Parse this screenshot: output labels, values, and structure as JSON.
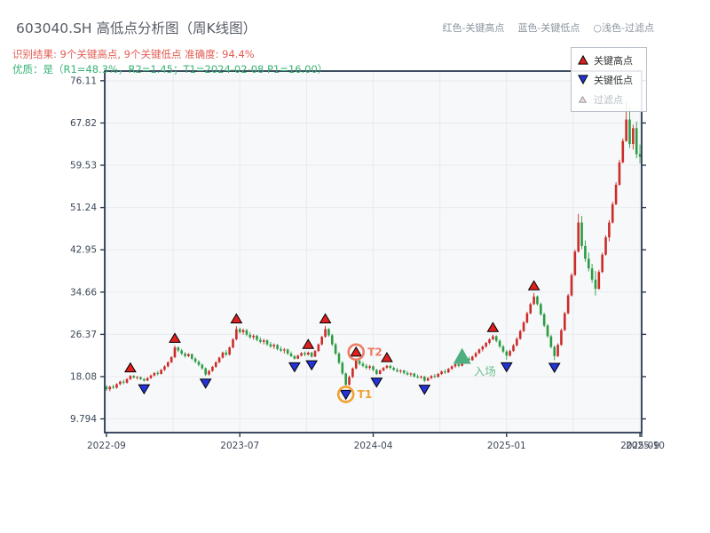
{
  "header": {
    "title": "603040.SH 高低点分析图（周K线图）",
    "result_line": "识别结果: 9个关键高点, 9个关键低点  准确度: 94.4%",
    "quality_line": "优质：是（R1=48.3%，R2=1.45；T1=2024-02-08 P1=16.00）",
    "note_items": [
      "红色-关键高点",
      "蓝色-关键低点",
      "○浅色-过滤点"
    ]
  },
  "legend": {
    "items": [
      {
        "label": "关键高点",
        "marker": "triangle-up",
        "color": "#e01f1f"
      },
      {
        "label": "关键低点",
        "marker": "triangle-down",
        "color": "#2433d8"
      },
      {
        "label": "过滤点",
        "marker": "triangle-up-small",
        "color": "#f6d4cf"
      }
    ]
  },
  "chart_data": {
    "type": "candlestick",
    "timeframe": "weekly",
    "title": "603040.SH 高低点分析图（周K线图）",
    "ylim": [
      7.1,
      78.0
    ],
    "grid": true,
    "y_ticks": [
      {
        "v": 76.11,
        "label": "76.11"
      },
      {
        "v": 67.82,
        "label": "67.82"
      },
      {
        "v": 59.53,
        "label": "59.53"
      },
      {
        "v": 51.24,
        "label": "51.24"
      },
      {
        "v": 42.95,
        "label": "42.95"
      },
      {
        "v": 34.66,
        "label": "34.66"
      },
      {
        "v": 26.37,
        "label": "26.37"
      },
      {
        "v": 18.08,
        "label": "18.08"
      },
      {
        "v": 9.794,
        "label": "9.794"
      }
    ],
    "x_ticks": [
      {
        "week": 0,
        "label": "2022-09"
      },
      {
        "week": 19.5
      },
      {
        "week": 39,
        "label": "2023-07"
      },
      {
        "week": 58.5
      },
      {
        "week": 78,
        "label": "2024-04"
      },
      {
        "week": 97.5
      },
      {
        "week": 117,
        "label": "2025-01"
      },
      {
        "week": 136.5
      },
      {
        "week": 156,
        "label": "2025-09"
      }
    ],
    "x_edge_label": "2025-10",
    "colors": {
      "up": "#cc2c28",
      "down": "#2b9c44",
      "plot_bg": "#f7f8fa",
      "grid": "#e7eaee",
      "spine": "#2a3950",
      "tick_label": "#3c4858",
      "marker_high": "#e01f1f",
      "marker_low": "#2433d8",
      "marker_edge": "#000000",
      "entry": "#4fae80",
      "entry_label": "#6fc08e",
      "t1": "#f0a12f",
      "t2": "#ec7d66"
    },
    "candles": [
      [
        16.1,
        16.4,
        15.3,
        15.6
      ],
      [
        15.6,
        16.3,
        15.2,
        16.1
      ],
      [
        16.1,
        16.5,
        15.7,
        15.9
      ],
      [
        15.9,
        16.8,
        15.7,
        16.6
      ],
      [
        16.6,
        17.3,
        16.4,
        17.1
      ],
      [
        17.1,
        17.5,
        16.6,
        16.9
      ],
      [
        16.9,
        17.8,
        16.7,
        17.6
      ],
      [
        17.6,
        18.4,
        17.4,
        18.2
      ],
      [
        18.2,
        18.4,
        17.7,
        17.9
      ],
      [
        17.9,
        18.2,
        17.5,
        18.0
      ],
      [
        18.0,
        18.1,
        17.4,
        17.6
      ],
      [
        17.6,
        17.8,
        17.1,
        17.3
      ],
      [
        17.3,
        18.0,
        17.2,
        17.8
      ],
      [
        17.8,
        18.5,
        17.6,
        18.3
      ],
      [
        18.3,
        19.0,
        18.1,
        18.8
      ],
      [
        18.8,
        19.2,
        18.3,
        18.6
      ],
      [
        18.6,
        19.6,
        18.5,
        19.4
      ],
      [
        19.4,
        20.3,
        19.2,
        20.1
      ],
      [
        20.1,
        21.1,
        19.9,
        20.9
      ],
      [
        20.9,
        22.1,
        20.7,
        21.9
      ],
      [
        21.9,
        24.2,
        21.7,
        23.8
      ],
      [
        23.8,
        24.0,
        22.9,
        23.2
      ],
      [
        23.2,
        23.5,
        22.3,
        22.6
      ],
      [
        22.6,
        22.9,
        21.8,
        22.1
      ],
      [
        22.1,
        22.7,
        21.9,
        22.5
      ],
      [
        22.5,
        22.6,
        21.3,
        21.6
      ],
      [
        21.6,
        21.9,
        20.7,
        21.0
      ],
      [
        21.0,
        21.3,
        20.1,
        20.4
      ],
      [
        20.4,
        20.7,
        19.4,
        19.7
      ],
      [
        19.7,
        19.9,
        18.2,
        18.5
      ],
      [
        18.5,
        19.4,
        18.3,
        19.2
      ],
      [
        19.2,
        20.2,
        19.0,
        20.0
      ],
      [
        20.0,
        21.1,
        19.8,
        20.9
      ],
      [
        20.9,
        22.0,
        20.7,
        21.8
      ],
      [
        21.8,
        23.0,
        21.6,
        22.8
      ],
      [
        22.8,
        23.3,
        22.1,
        22.4
      ],
      [
        22.4,
        24.0,
        22.2,
        23.8
      ],
      [
        23.8,
        25.6,
        23.6,
        25.4
      ],
      [
        25.4,
        28.0,
        25.2,
        27.4
      ],
      [
        27.4,
        27.7,
        26.5,
        26.8
      ],
      [
        26.8,
        27.5,
        26.3,
        27.2
      ],
      [
        27.2,
        27.4,
        26.0,
        26.3
      ],
      [
        26.3,
        26.8,
        25.5,
        25.8
      ],
      [
        25.8,
        26.4,
        25.3,
        26.1
      ],
      [
        26.1,
        26.3,
        25.0,
        25.3
      ],
      [
        25.3,
        25.8,
        24.6,
        24.9
      ],
      [
        24.9,
        25.5,
        24.4,
        25.2
      ],
      [
        25.2,
        25.4,
        24.1,
        24.4
      ],
      [
        24.4,
        24.9,
        23.7,
        24.0
      ],
      [
        24.0,
        24.6,
        23.5,
        24.3
      ],
      [
        24.3,
        24.5,
        23.2,
        23.5
      ],
      [
        23.5,
        24.0,
        22.9,
        23.2
      ],
      [
        23.2,
        23.7,
        22.6,
        23.4
      ],
      [
        23.4,
        23.6,
        22.3,
        22.6
      ],
      [
        22.6,
        23.0,
        21.9,
        22.1
      ],
      [
        22.1,
        22.3,
        21.4,
        21.6
      ],
      [
        21.6,
        22.4,
        21.5,
        22.2
      ],
      [
        22.2,
        22.9,
        22.0,
        22.7
      ],
      [
        22.7,
        23.0,
        22.1,
        22.4
      ],
      [
        22.4,
        23.0,
        22.2,
        22.8
      ],
      [
        22.8,
        22.9,
        21.8,
        22.0
      ],
      [
        22.0,
        23.3,
        21.9,
        23.1
      ],
      [
        23.1,
        24.6,
        22.9,
        24.4
      ],
      [
        24.4,
        26.1,
        24.2,
        25.9
      ],
      [
        25.9,
        28.0,
        25.7,
        27.4
      ],
      [
        27.4,
        27.6,
        25.9,
        26.2
      ],
      [
        26.2,
        26.5,
        24.1,
        24.4
      ],
      [
        24.4,
        24.7,
        22.3,
        22.6
      ],
      [
        22.6,
        22.9,
        20.5,
        20.8
      ],
      [
        20.8,
        21.1,
        18.4,
        18.7
      ],
      [
        18.7,
        18.9,
        16.0,
        16.5
      ],
      [
        16.5,
        18.3,
        16.3,
        18.0
      ],
      [
        18.0,
        19.9,
        17.8,
        19.7
      ],
      [
        19.7,
        21.5,
        19.5,
        21.2
      ],
      [
        21.2,
        21.4,
        20.3,
        20.6
      ],
      [
        20.6,
        21.0,
        19.9,
        20.2
      ],
      [
        20.2,
        20.6,
        19.5,
        19.8
      ],
      [
        19.8,
        20.4,
        19.4,
        20.1
      ],
      [
        20.1,
        20.3,
        19.1,
        19.4
      ],
      [
        19.4,
        19.6,
        18.4,
        18.6
      ],
      [
        18.6,
        19.5,
        18.5,
        19.3
      ],
      [
        19.3,
        20.0,
        19.1,
        19.8
      ],
      [
        19.8,
        20.4,
        19.6,
        20.2
      ],
      [
        20.2,
        20.4,
        19.5,
        19.8
      ],
      [
        19.8,
        20.1,
        19.2,
        19.4
      ],
      [
        19.4,
        19.8,
        18.9,
        19.1
      ],
      [
        19.1,
        19.5,
        18.7,
        19.3
      ],
      [
        19.3,
        19.4,
        18.5,
        18.8
      ],
      [
        18.8,
        19.2,
        18.3,
        18.5
      ],
      [
        18.5,
        18.9,
        18.1,
        18.7
      ],
      [
        18.7,
        18.8,
        17.9,
        18.1
      ],
      [
        18.1,
        18.5,
        17.7,
        17.9
      ],
      [
        17.9,
        18.3,
        17.6,
        18.1
      ],
      [
        18.1,
        18.2,
        17.0,
        17.3
      ],
      [
        17.3,
        18.0,
        17.2,
        17.8
      ],
      [
        17.8,
        18.4,
        17.6,
        18.2
      ],
      [
        18.2,
        18.6,
        17.8,
        18.0
      ],
      [
        18.0,
        18.8,
        17.9,
        18.6
      ],
      [
        18.6,
        19.3,
        18.4,
        19.1
      ],
      [
        19.1,
        19.5,
        18.6,
        18.9
      ],
      [
        18.9,
        19.8,
        18.8,
        19.6
      ],
      [
        19.6,
        20.3,
        19.4,
        20.1
      ],
      [
        20.1,
        20.7,
        19.8,
        20.5
      ],
      [
        20.5,
        20.9,
        19.9,
        20.2
      ],
      [
        20.2,
        21.3,
        20.1,
        21.1
      ],
      [
        21.1,
        21.8,
        20.8,
        21.6
      ],
      [
        21.6,
        22.0,
        21.0,
        21.3
      ],
      [
        21.3,
        22.2,
        21.2,
        22.0
      ],
      [
        22.0,
        22.9,
        21.8,
        22.7
      ],
      [
        22.7,
        23.6,
        22.5,
        23.4
      ],
      [
        23.4,
        24.2,
        23.0,
        24.0
      ],
      [
        24.0,
        24.9,
        23.7,
        24.7
      ],
      [
        24.7,
        25.6,
        24.4,
        25.4
      ],
      [
        25.4,
        26.3,
        25.2,
        26.0
      ],
      [
        26.0,
        26.2,
        24.8,
        25.1
      ],
      [
        25.1,
        25.4,
        23.7,
        24.0
      ],
      [
        24.0,
        24.3,
        22.7,
        23.0
      ],
      [
        23.0,
        23.3,
        21.4,
        22.2
      ],
      [
        22.2,
        23.4,
        22.0,
        23.1
      ],
      [
        23.1,
        24.5,
        22.9,
        24.2
      ],
      [
        24.2,
        25.8,
        24.0,
        25.5
      ],
      [
        25.5,
        27.3,
        25.3,
        27.0
      ],
      [
        27.0,
        29.0,
        26.8,
        28.7
      ],
      [
        28.7,
        30.8,
        28.5,
        30.5
      ],
      [
        30.5,
        32.6,
        30.3,
        32.3
      ],
      [
        32.3,
        34.5,
        32.1,
        33.8
      ],
      [
        33.8,
        34.0,
        32.0,
        32.3
      ],
      [
        32.3,
        32.6,
        30.0,
        30.3
      ],
      [
        30.3,
        30.6,
        27.8,
        28.1
      ],
      [
        28.1,
        28.4,
        25.7,
        26.0
      ],
      [
        26.0,
        26.3,
        23.6,
        23.9
      ],
      [
        23.9,
        24.2,
        21.3,
        22.1
      ],
      [
        22.1,
        24.6,
        21.9,
        24.3
      ],
      [
        24.3,
        27.5,
        24.1,
        27.2
      ],
      [
        27.2,
        30.8,
        27.0,
        30.5
      ],
      [
        30.5,
        34.3,
        30.3,
        34.0
      ],
      [
        34.0,
        38.4,
        33.8,
        38.0
      ],
      [
        38.0,
        43.0,
        37.8,
        42.6
      ],
      [
        42.6,
        50.0,
        42.4,
        48.3
      ],
      [
        48.3,
        49.6,
        43.1,
        43.7
      ],
      [
        43.7,
        44.8,
        40.6,
        41.2
      ],
      [
        41.2,
        42.4,
        38.7,
        39.3
      ],
      [
        39.3,
        40.2,
        36.5,
        37.1
      ],
      [
        37.1,
        38.8,
        34.0,
        35.3
      ],
      [
        35.3,
        39.0,
        35.1,
        38.6
      ],
      [
        38.6,
        42.4,
        38.4,
        42.0
      ],
      [
        42.0,
        45.8,
        41.8,
        45.4
      ],
      [
        45.4,
        48.8,
        44.6,
        48.3
      ],
      [
        48.3,
        52.4,
        48.1,
        51.9
      ],
      [
        51.9,
        56.2,
        51.7,
        55.7
      ],
      [
        55.7,
        60.6,
        55.5,
        60.1
      ],
      [
        60.1,
        64.8,
        59.9,
        64.3
      ],
      [
        64.3,
        72.0,
        64.1,
        68.5
      ],
      [
        68.5,
        70.9,
        62.9,
        63.7
      ],
      [
        63.7,
        67.5,
        62.6,
        66.8
      ],
      [
        66.8,
        68.1,
        60.9,
        61.7
      ],
      [
        61.7,
        63.6,
        59.9,
        61.2
      ]
    ],
    "key_highs": [
      {
        "week": 7,
        "price": 18.4
      },
      {
        "week": 20,
        "price": 24.2
      },
      {
        "week": 38,
        "price": 28.0
      },
      {
        "week": 59,
        "price": 23.0
      },
      {
        "week": 64,
        "price": 28.0
      },
      {
        "week": 73,
        "price": 21.5
      },
      {
        "week": 82,
        "price": 20.4
      },
      {
        "week": 113,
        "price": 26.3
      },
      {
        "week": 125,
        "price": 34.5
      }
    ],
    "key_lows": [
      {
        "week": 11,
        "price": 17.1
      },
      {
        "week": 29,
        "price": 18.2
      },
      {
        "week": 55,
        "price": 21.4
      },
      {
        "week": 60,
        "price": 21.8
      },
      {
        "week": 70,
        "price": 16.0
      },
      {
        "week": 79,
        "price": 18.4
      },
      {
        "week": 93,
        "price": 17.0
      },
      {
        "week": 117,
        "price": 21.4
      },
      {
        "week": 131,
        "price": 21.3
      }
    ],
    "entry_marker": {
      "week": 104,
      "price": 21.1,
      "label": "入场"
    },
    "annotations": [
      {
        "week": 70,
        "price": 16.0,
        "label": "T1",
        "type": "circle-low",
        "color": "#f0a12f"
      },
      {
        "week": 73,
        "price": 21.5,
        "label": "T2",
        "type": "circle-high",
        "color": "#ec7d66"
      }
    ]
  }
}
